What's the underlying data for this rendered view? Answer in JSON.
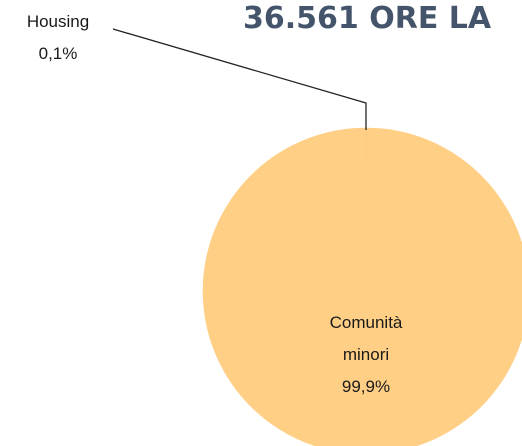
{
  "chart_data": {
    "type": "pie",
    "title": "36.561 ORE LA",
    "categories": [
      "Housing",
      "Comunità minori"
    ],
    "values": [
      0.1,
      99.9
    ],
    "value_labels": [
      "0,1%",
      "99,9%"
    ],
    "colors": [
      "#f2c474",
      "#ffcf86"
    ]
  }
}
